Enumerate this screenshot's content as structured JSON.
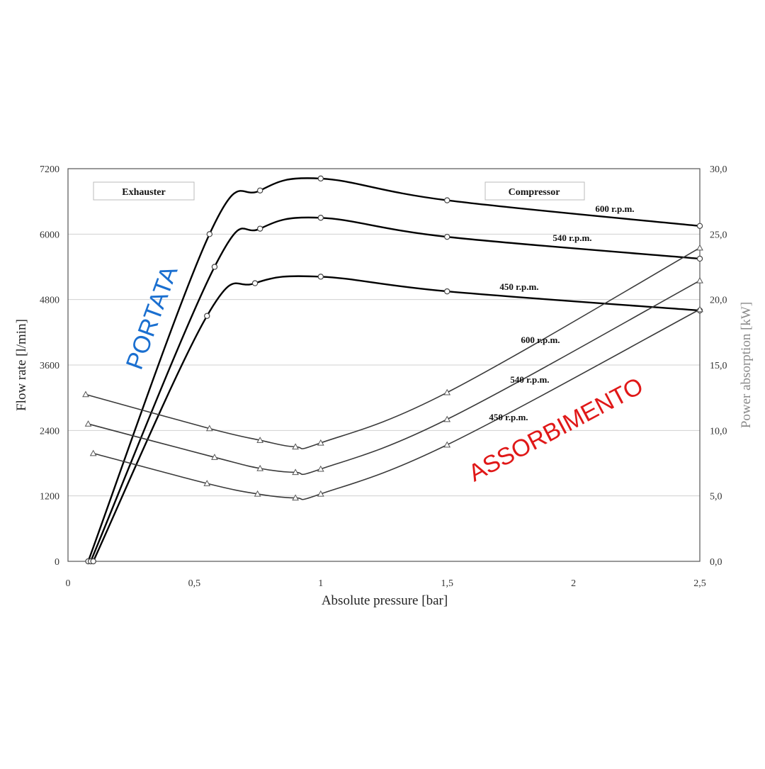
{
  "colors": {
    "curve": "#000000",
    "grid": "#d0d0d0",
    "portata_text": "#1a6fd0",
    "assorbimento_text": "#e01818"
  },
  "chart_data": {
    "type": "line",
    "xlabel": "Absolute pressure [bar]",
    "ylabel_left": "Flow rate [l/min]",
    "ylabel_right": "Power absorption [kW]",
    "xlim": [
      0,
      2.5
    ],
    "ylim_left": [
      0,
      7200
    ],
    "ylim_right": [
      0,
      30
    ],
    "grid": "horizontal",
    "x_ticks": [
      "0",
      "0,5",
      "1",
      "1,5",
      "2",
      "2,5"
    ],
    "x_tick_values": [
      0,
      0.5,
      1,
      1.5,
      2,
      2.5
    ],
    "y_ticks_left": [
      "0",
      "1200",
      "2400",
      "3600",
      "4800",
      "6000",
      "7200"
    ],
    "y_tick_values_left": [
      0,
      1200,
      2400,
      3600,
      4800,
      6000,
      7200
    ],
    "y_ticks_right": [
      "0,0",
      "5,0",
      "10,0",
      "15,0",
      "20,0",
      "25,0",
      "30,0"
    ],
    "y_tick_values_right": [
      0,
      5,
      10,
      15,
      20,
      25,
      30
    ],
    "sections": [
      "Exhauster",
      "Compressor"
    ],
    "overlays": {
      "portata": "PORTATA",
      "assorbimento": "ASSORBIMENTO"
    },
    "flow_series": [
      {
        "name": "600 r.p.m.",
        "points": [
          [
            0.08,
            0
          ],
          [
            0.56,
            6000
          ],
          [
            0.76,
            6800
          ],
          [
            1.0,
            7020
          ],
          [
            1.5,
            6620
          ],
          [
            2.5,
            6150
          ]
        ]
      },
      {
        "name": "540 r.p.m.",
        "points": [
          [
            0.09,
            0
          ],
          [
            0.58,
            5400
          ],
          [
            0.76,
            6100
          ],
          [
            1.0,
            6300
          ],
          [
            1.5,
            5950
          ],
          [
            2.5,
            5550
          ]
        ]
      },
      {
        "name": "450 r.p.m.",
        "points": [
          [
            0.1,
            0
          ],
          [
            0.55,
            4500
          ],
          [
            0.74,
            5100
          ],
          [
            1.0,
            5220
          ],
          [
            1.5,
            4950
          ],
          [
            2.5,
            4600
          ]
        ]
      }
    ],
    "power_series": [
      {
        "name": "600 r.p.m.",
        "points": [
          [
            0.07,
            12.75
          ],
          [
            0.56,
            10.15
          ],
          [
            0.76,
            9.25
          ],
          [
            0.9,
            8.75
          ],
          [
            1.0,
            9.05
          ],
          [
            1.5,
            12.9
          ],
          [
            2.5,
            23.95
          ]
        ]
      },
      {
        "name": "540 r.p.m.",
        "points": [
          [
            0.08,
            10.5
          ],
          [
            0.58,
            7.95
          ],
          [
            0.76,
            7.1
          ],
          [
            0.9,
            6.8
          ],
          [
            1.0,
            7.05
          ],
          [
            1.5,
            10.85
          ],
          [
            2.5,
            21.45
          ]
        ]
      },
      {
        "name": "450 r.p.m.",
        "points": [
          [
            0.1,
            8.25
          ],
          [
            0.55,
            5.95
          ],
          [
            0.75,
            5.15
          ],
          [
            0.9,
            4.85
          ],
          [
            1.0,
            5.15
          ],
          [
            1.5,
            8.9
          ],
          [
            2.5,
            19.25
          ]
        ]
      }
    ]
  }
}
